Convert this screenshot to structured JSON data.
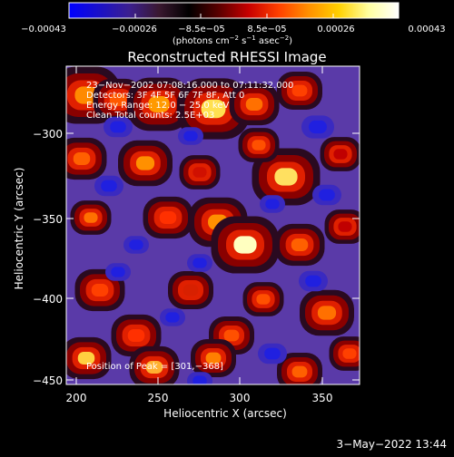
{
  "colorbar": {
    "ticks": [
      "−0.00043",
      "−0.00026",
      "−8.5e−05",
      "8.5e−05",
      "0.00026",
      "0.00043"
    ],
    "unit_parts": [
      "(photons cm",
      "−2",
      " s",
      "−1",
      " asec",
      "−2",
      ")"
    ],
    "colors": [
      "#0000ff",
      "#1a10c8",
      "#3b1f90",
      "#3a1830",
      "#000000",
      "#5a0000",
      "#c80000",
      "#ff4000",
      "#ff9000",
      "#ffd000",
      "#ffffa0",
      "#ffffff"
    ]
  },
  "plot": {
    "title": "Reconstructed RHESSI Image",
    "xlabel": "Heliocentric X (arcsec)",
    "ylabel": "Heliocentric Y (arcsec)",
    "xticks": [
      "200",
      "250",
      "300",
      "350"
    ],
    "yticks": [
      "−300",
      "−350",
      "−400",
      "−450"
    ],
    "info_lines": [
      "23−Nov−2002 07:08:16.000 to 07:11:32.000",
      "Detectors: 3F 4F 5F 6F 7F 8F, Att 0",
      "Energy Range: 12.0 − 25.0 keV",
      "Clean     Total counts: 2.5E+03"
    ],
    "peak_text": "Position of Peak = [301,−368]",
    "colors": {
      "background": "#000000",
      "text": "#ffffff",
      "field": "#5a3aa8",
      "low": "#2a2ad8",
      "dark": "#3a1030"
    }
  },
  "footer": {
    "date": "3−May−2022 13:44"
  }
}
